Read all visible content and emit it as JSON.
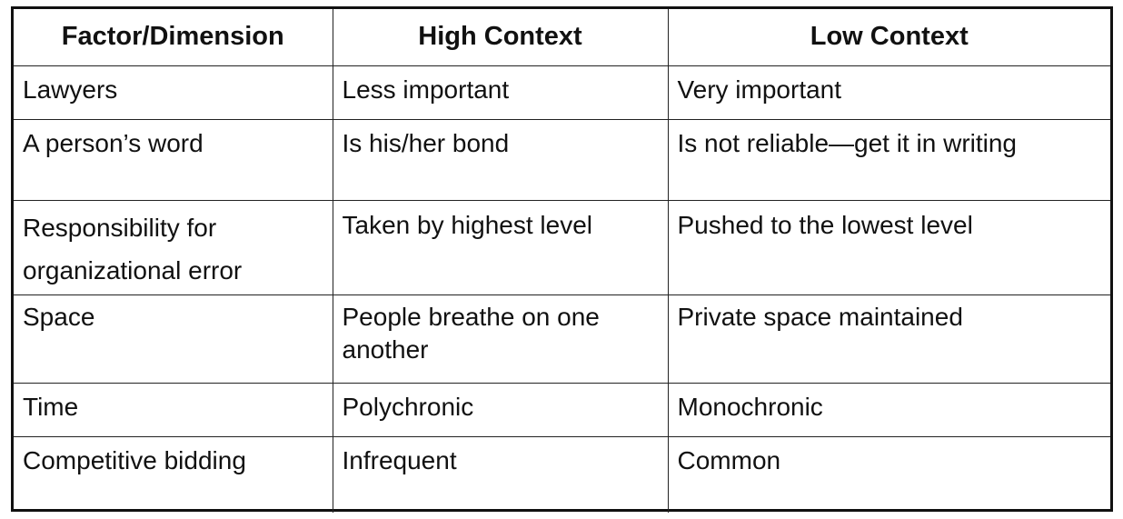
{
  "table": {
    "headers": [
      "Factor/Dimension",
      "High Context",
      "Low Context"
    ],
    "rows": [
      [
        "Lawyers",
        "Less important",
        "Very important"
      ],
      [
        "A person’s word",
        "Is his/her bond",
        "Is not reliable—get it in writing"
      ],
      [
        "Responsibility for organizational error",
        "Taken by highest level",
        "Pushed to the lowest level"
      ],
      [
        "Space",
        "People breathe on one another",
        "Private space maintained"
      ],
      [
        "Time",
        "Polychronic",
        "Monochronic"
      ],
      [
        "Competitive bidding",
        "Infrequent",
        "Common"
      ]
    ]
  }
}
